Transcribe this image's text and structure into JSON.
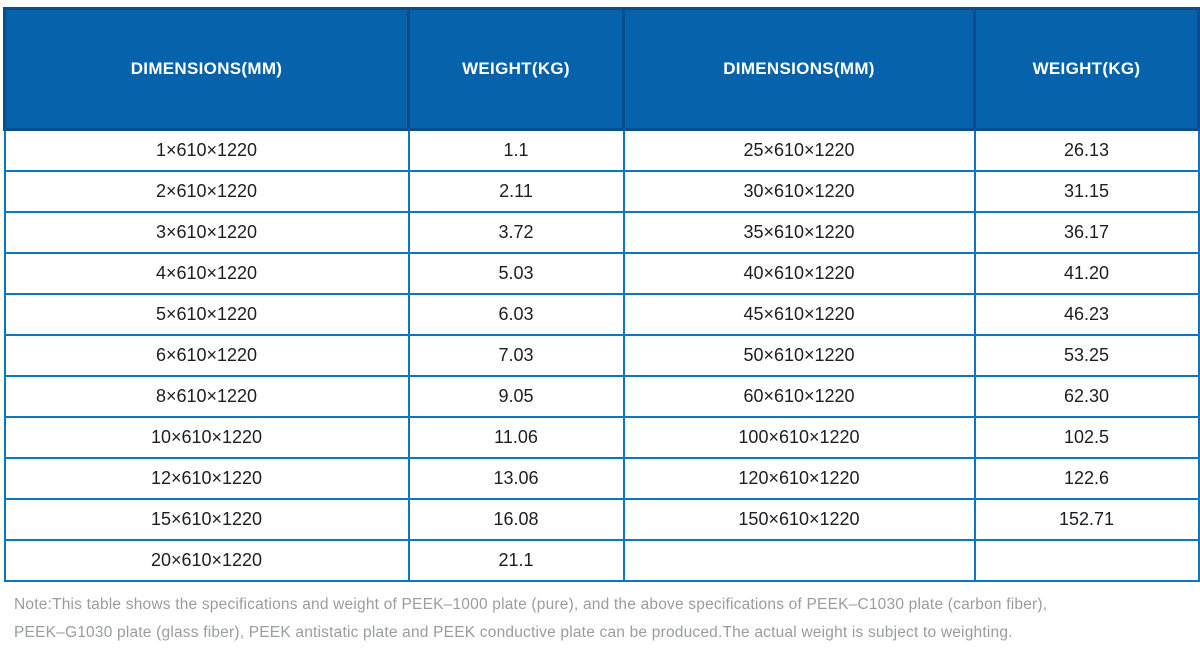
{
  "table": {
    "columns": [
      {
        "label": "DIMENSIONS(MM)"
      },
      {
        "label": "WEIGHT(KG)"
      },
      {
        "label": "DIMENSIONS(MM)"
      },
      {
        "label": "WEIGHT(KG)"
      }
    ],
    "rows": [
      [
        "1×610×1220",
        "1.1",
        "25×610×1220",
        "26.13"
      ],
      [
        "2×610×1220",
        "2.11",
        "30×610×1220",
        "31.15"
      ],
      [
        "3×610×1220",
        "3.72",
        "35×610×1220",
        "36.17"
      ],
      [
        "4×610×1220",
        "5.03",
        "40×610×1220",
        "41.20"
      ],
      [
        "5×610×1220",
        "6.03",
        "45×610×1220",
        "46.23"
      ],
      [
        "6×610×1220",
        "7.03",
        "50×610×1220",
        "53.25"
      ],
      [
        "8×610×1220",
        "9.05",
        "60×610×1220",
        "62.30"
      ],
      [
        "10×610×1220",
        "11.06",
        "100×610×1220",
        "102.5"
      ],
      [
        "12×610×1220",
        "13.06",
        "120×610×1220",
        "122.6"
      ],
      [
        "15×610×1220",
        "16.08",
        "150×610×1220",
        "152.71"
      ],
      [
        "20×610×1220",
        "21.1",
        "",
        ""
      ]
    ]
  },
  "note": {
    "line1": "Note:This table shows the specifications and weight of PEEK–1000 plate (pure), and the above specifications of PEEK–C1030 plate (carbon fiber),",
    "line2": "PEEK–G1030 plate (glass fiber), PEEK antistatic plate and PEEK conductive plate can be produced.The actual weight is subject to weighting."
  },
  "colors": {
    "header_bg": "#0662AB",
    "header_border": "#0A4D8A",
    "grid_border": "#0D76C3",
    "cell_text": "#1E1E1E",
    "note_text": "#9A9C9E",
    "page_bg": "#FFFFFF"
  }
}
